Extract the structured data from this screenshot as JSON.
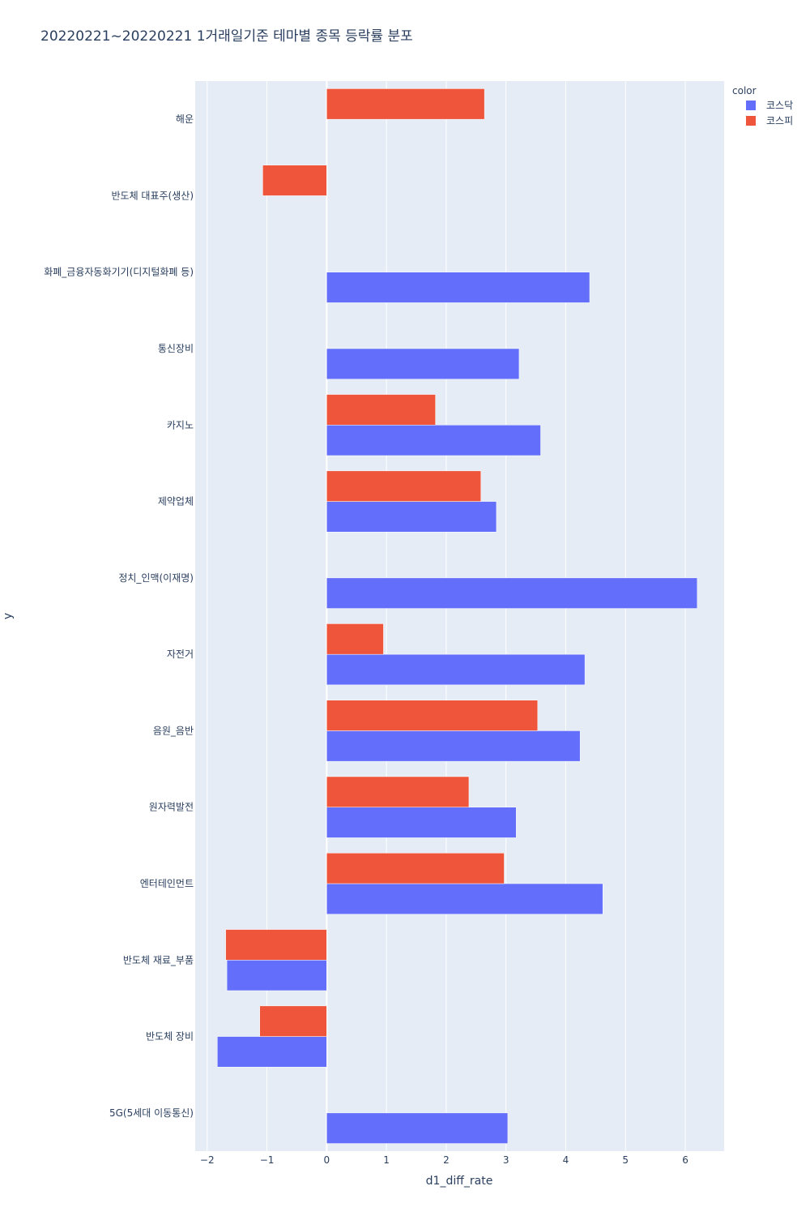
{
  "chart_data": {
    "type": "bar",
    "orientation": "horizontal",
    "barmode": "group",
    "title": "20220221~20220221 1거래일기준 테마별 종목 등락률 분포",
    "xlabel": "d1_diff_rate",
    "ylabel": "y",
    "xlim": [
      -2.2,
      6.65
    ],
    "xticks": [
      -2,
      -1,
      0,
      1,
      2,
      3,
      4,
      5,
      6
    ],
    "xtick_labels": [
      "−2",
      "−1",
      "0",
      "1",
      "2",
      "3",
      "4",
      "5",
      "6"
    ],
    "grid": true,
    "legend": {
      "title": "color",
      "placement": "top-right"
    },
    "categories": [
      "해운",
      "반도체 대표주(생산)",
      "화폐_금융자동화기기(디지털화폐 등)",
      "통신장비",
      "카지노",
      "제약업체",
      "정치_인맥(이재명)",
      "자전거",
      "음원_음반",
      "원자력발전",
      "엔터테인먼트",
      "반도체 재료_부품",
      "반도체 장비",
      "5G(5세대 이동통신)"
    ],
    "series": [
      {
        "name": "코스닥",
        "color": "#636efa",
        "values": [
          null,
          null,
          4.4,
          3.22,
          3.58,
          2.84,
          6.2,
          4.32,
          4.24,
          3.17,
          4.62,
          -1.67,
          -1.83,
          3.03
        ]
      },
      {
        "name": "코스피",
        "color": "#ef553b",
        "values": [
          2.64,
          -1.07,
          null,
          null,
          1.82,
          2.58,
          null,
          0.95,
          3.53,
          2.38,
          2.97,
          -1.69,
          -1.12,
          null
        ]
      }
    ]
  },
  "colors": {
    "plot_background": "#e5ecf6",
    "grid": "#ffffff",
    "text": "#2a3f5f"
  }
}
